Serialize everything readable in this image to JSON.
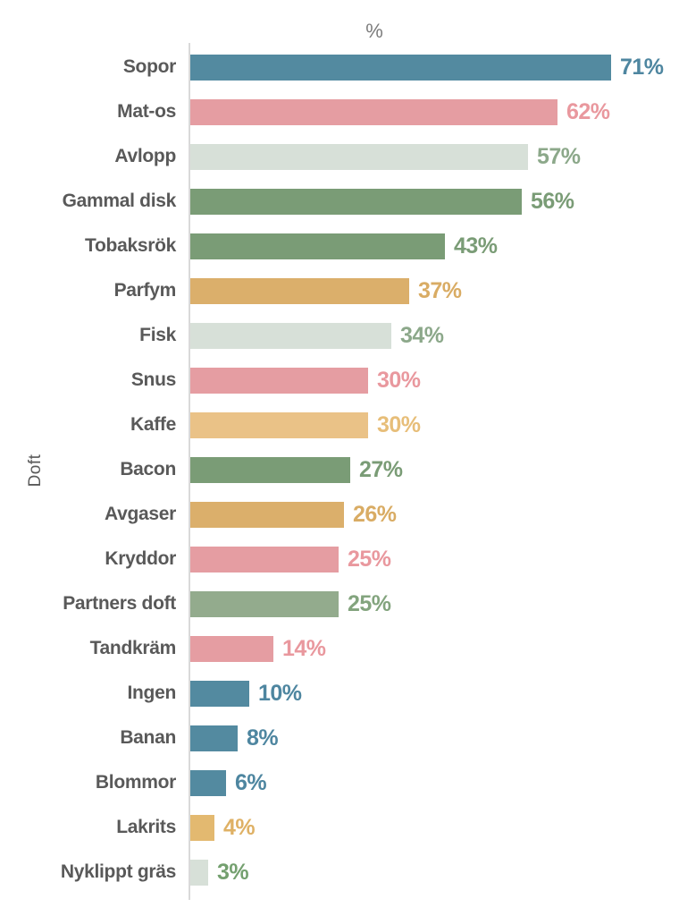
{
  "chart_data": {
    "type": "bar",
    "orientation": "horizontal",
    "xlabel": "%",
    "ylabel": "Doft",
    "xlim": [
      0,
      80
    ],
    "grid": false,
    "legend": "none",
    "axis_line_color": "#d9d9d9",
    "category_text_color": "#595959",
    "categories": [
      "Sopor",
      "Mat-os",
      "Avlopp",
      "Gammal disk",
      "Tobaksrök",
      "Parfym",
      "Fisk",
      "Snus",
      "Kaffe",
      "Bacon",
      "Avgaser",
      "Kryddor",
      "Partners doft",
      "Tandkräm",
      "Ingen",
      "Banan",
      "Blommor",
      "Lakrits",
      "Nyklippt gräs"
    ],
    "values": [
      71,
      62,
      57,
      56,
      43,
      37,
      34,
      30,
      30,
      27,
      26,
      25,
      25,
      14,
      10,
      8,
      6,
      4,
      3
    ],
    "value_labels": [
      "71%",
      "62%",
      "57%",
      "56%",
      "43%",
      "37%",
      "34%",
      "30%",
      "30%",
      "27%",
      "26%",
      "25%",
      "25%",
      "14%",
      "10%",
      "8%",
      "6%",
      "4%",
      "3%"
    ],
    "bar_colors": [
      "#538aa0",
      "#e59da2",
      "#d7e0d8",
      "#7a9c76",
      "#7a9c76",
      "#dbaf6b",
      "#d7e0d8",
      "#e59da2",
      "#eac287",
      "#7a9c76",
      "#dbaf6b",
      "#e59da2",
      "#93ab8d",
      "#e59da2",
      "#538aa0",
      "#538aa0",
      "#538aa0",
      "#e3b970",
      "#d7e0d8"
    ],
    "value_label_colors": [
      "#4e86a0",
      "#e9989e",
      "#8ca88a",
      "#7a9c76",
      "#7a9c76",
      "#d9ac64",
      "#8ca88a",
      "#e9989e",
      "#e7be79",
      "#7a9c76",
      "#d9ac64",
      "#e9989e",
      "#83a47e",
      "#e9989e",
      "#4e86a0",
      "#4e86a0",
      "#4e86a0",
      "#dfb165",
      "#74a06f"
    ]
  }
}
